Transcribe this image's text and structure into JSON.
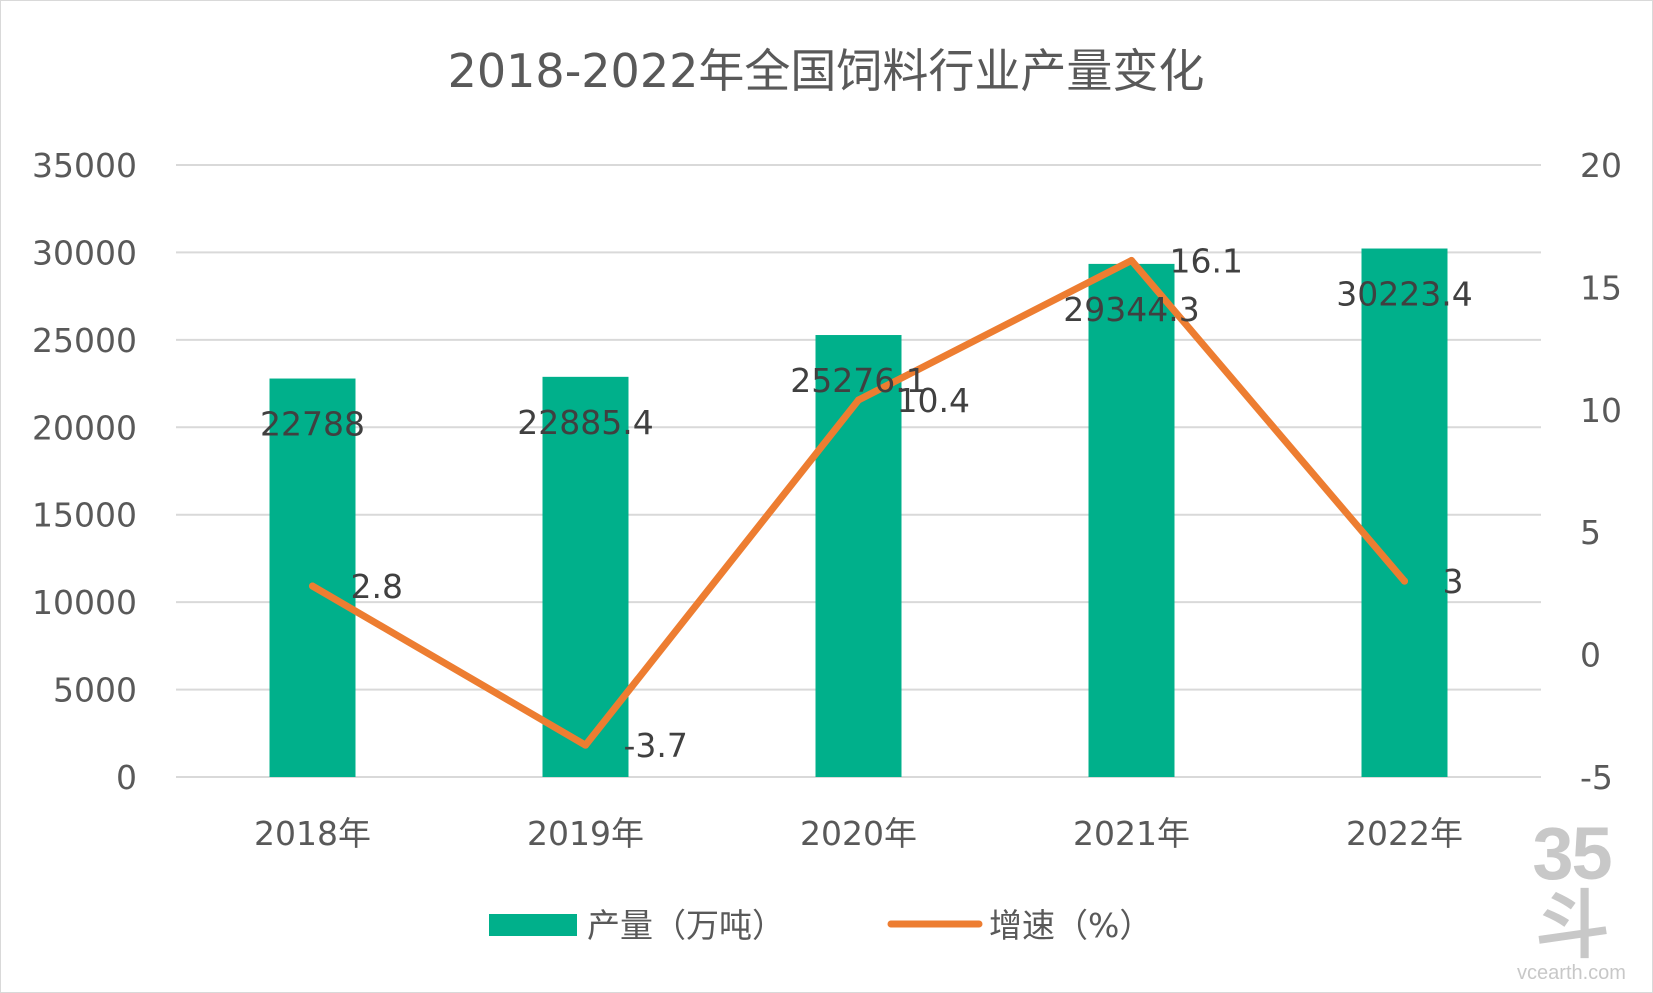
{
  "chart_data": {
    "type": "bar+line",
    "title": "2018-2022年全国饲料行业产量变化",
    "categories": [
      "2018年",
      "2019年",
      "2020年",
      "2021年",
      "2022年"
    ],
    "series": [
      {
        "name": "产量（万吨）",
        "type": "bar",
        "axis": "left",
        "color": "#00b08b",
        "values": [
          22788,
          22885.4,
          25276.1,
          29344.3,
          30223.4
        ],
        "labels": [
          "22788",
          "22885.4",
          "25276.1",
          "29344.3",
          "30223.4"
        ]
      },
      {
        "name": "增速（%）",
        "type": "line",
        "axis": "right",
        "color": "#ed7d31",
        "values": [
          2.8,
          -3.7,
          10.4,
          16.1,
          3
        ],
        "labels": [
          "2.8",
          "-3.7",
          "10.4",
          "16.1",
          "3"
        ]
      }
    ],
    "left_axis": {
      "min": 0,
      "max": 35000,
      "step": 5000,
      "ticks": [
        "0",
        "5000",
        "10000",
        "15000",
        "20000",
        "25000",
        "30000",
        "35000"
      ]
    },
    "right_axis": {
      "min": -5,
      "max": 20,
      "step": 5,
      "ticks": [
        "-5",
        "0",
        "5",
        "10",
        "15",
        "20"
      ]
    },
    "grid": true,
    "legend_position": "bottom"
  },
  "watermark": {
    "logo": "35斗",
    "site": "vcearth.com"
  }
}
